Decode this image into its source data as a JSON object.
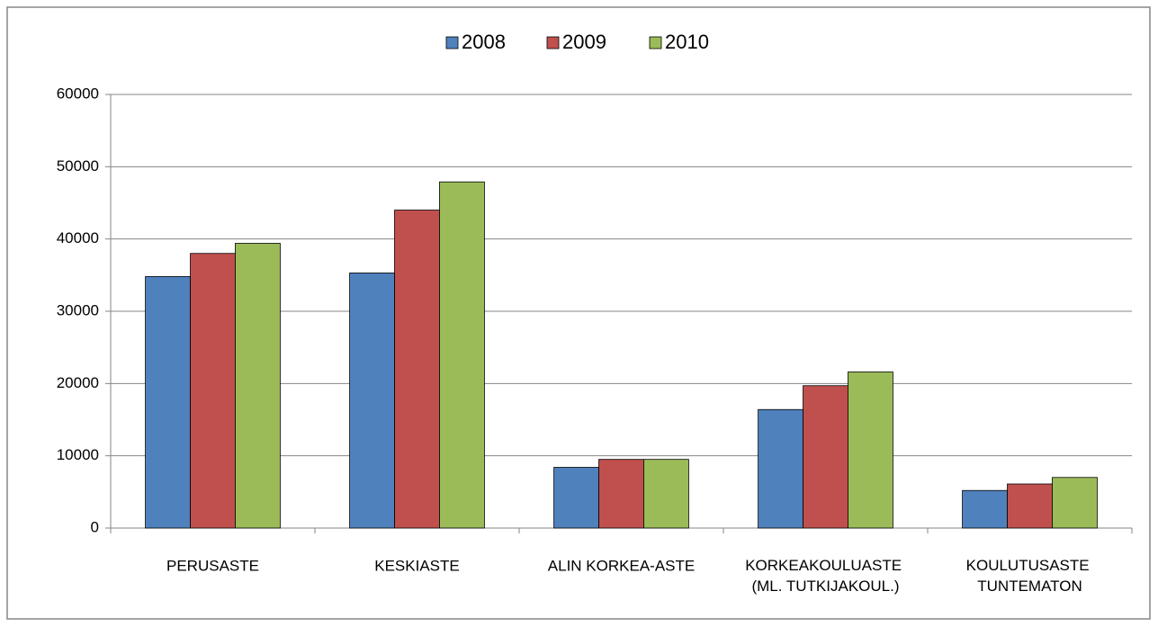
{
  "chart_data": {
    "type": "bar",
    "categories": [
      "PERUSASTE",
      "KESKIASTE",
      "ALIN KORKEA-ASTE",
      "KORKEAKOULUASTE\n(ML. TUTKIJAKOUL.)",
      "KOULUTUSASTE\nTUNTEMATON"
    ],
    "series": [
      {
        "name": "2008",
        "color": "#4f81bd",
        "values": [
          34800,
          35300,
          8400,
          16400,
          5200
        ]
      },
      {
        "name": "2009",
        "color": "#c0504d",
        "values": [
          38000,
          44000,
          9500,
          19700,
          6100
        ]
      },
      {
        "name": "2010",
        "color": "#9bbb59",
        "values": [
          39400,
          47900,
          9500,
          21600,
          7000
        ]
      }
    ],
    "ylim": [
      0,
      60000
    ],
    "yticks": [
      0,
      10000,
      20000,
      30000,
      40000,
      50000,
      60000
    ],
    "grid": true,
    "legend": "top"
  }
}
